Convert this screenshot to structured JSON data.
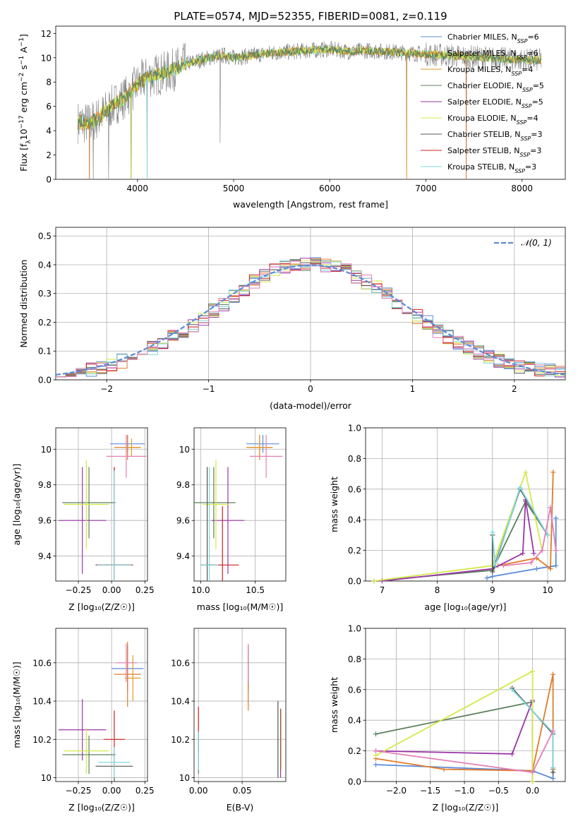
{
  "colors": {
    "chabrier_miles": "#5b8bd8",
    "salpeter_miles": "#e07b2a",
    "kroupa_miles": "#e09a2a",
    "chabrier_elodie": "#5d7f5d",
    "salpeter_elodie": "#9a35a8",
    "kroupa_elodie": "#d4e84a",
    "chabrier_stelib": "#555555",
    "salpeter_stelib": "#cc1f1f",
    "kroupa_stelib": "#7fd9dc",
    "pink": "#e47fb6",
    "data": "#808080",
    "normal": "#5b8bd8"
  },
  "chart_data": [
    {
      "id": "spectrum",
      "type": "line",
      "title": "PLATE=0574, MJD=52355, FIBERID=0081, z=0.119",
      "xlabel": "wavelength [Angstrom, rest frame]",
      "ylabel_parts": [
        "Flux [f",
        "λ",
        "10",
        "−17",
        " erg cm",
        "−2",
        " s",
        "−1",
        " A",
        "−1",
        "]"
      ],
      "xlim": [
        3150,
        8450
      ],
      "ylim": [
        0,
        12.6
      ],
      "xticks": [
        4000,
        5000,
        6000,
        7000,
        8000
      ],
      "yticks": [
        0,
        2,
        4,
        6,
        8,
        10,
        12
      ],
      "continuum": {
        "x": [
          3380,
          3500,
          3600,
          3700,
          3800,
          3900,
          4000,
          4100,
          4200,
          4300,
          4400,
          4500,
          4600,
          4700,
          4800,
          4900,
          5000,
          5200,
          5400,
          5600,
          5800,
          6000,
          6200,
          6400,
          6600,
          6800,
          7000,
          7200,
          7400,
          7600,
          7800,
          8000,
          8200
        ],
        "y": [
          4.7,
          4.6,
          5.1,
          5.8,
          6.4,
          6.9,
          7.8,
          8.4,
          8.6,
          8.8,
          9.1,
          9.5,
          9.7,
          9.9,
          10.1,
          10.2,
          10.0,
          10.2,
          10.4,
          10.5,
          10.6,
          10.7,
          10.5,
          10.6,
          10.5,
          10.4,
          10.3,
          10.2,
          10.1,
          10.0,
          9.9,
          9.8,
          9.8
        ]
      },
      "dips": [
        {
          "x": 3934,
          "y": 0
        },
        {
          "x": 4101,
          "y": 0
        },
        {
          "x": 4861,
          "y": 3.0
        },
        {
          "x": 3500,
          "y": 0
        },
        {
          "x": 3540,
          "y": 0
        },
        {
          "x": 3700,
          "y": 0
        },
        {
          "x": 6800,
          "y": 0
        },
        {
          "x": 7420,
          "y": 0
        }
      ],
      "legend": [
        {
          "label": "Chabrier MILES, N",
          "sub": "SSP",
          "suffix": "=6",
          "color_key": "chabrier_miles"
        },
        {
          "label": "Salpeter MILES, N",
          "sub": "SSP",
          "suffix": "=6",
          "color_key": "salpeter_miles"
        },
        {
          "label": "Kroupa MILES, N",
          "sub": "SSP",
          "suffix": "=4",
          "color_key": "kroupa_miles"
        },
        {
          "label": "Chabrier ELODIE, N",
          "sub": "SSP",
          "suffix": "=5",
          "color_key": "chabrier_elodie"
        },
        {
          "label": "Salpeter ELODIE, N",
          "sub": "SSP",
          "suffix": "=5",
          "color_key": "salpeter_elodie"
        },
        {
          "label": "Kroupa ELODIE, N",
          "sub": "SSP",
          "suffix": "=4",
          "color_key": "kroupa_elodie"
        },
        {
          "label": "Chabrier STELIB, N",
          "sub": "SSP",
          "suffix": "=3",
          "color_key": "chabrier_stelib"
        },
        {
          "label": "Salpeter STELIB, N",
          "sub": "SSP",
          "suffix": "=3",
          "color_key": "salpeter_stelib"
        },
        {
          "label": "Kroupa STELIB, N",
          "sub": "SSP",
          "suffix": "=3",
          "color_key": "kroupa_stelib"
        }
      ]
    },
    {
      "id": "residuals",
      "type": "line",
      "xlabel": "(data-model)/error",
      "ylabel": "Normed distribution",
      "xlim": [
        -2.5,
        2.5
      ],
      "ylim": [
        0,
        0.53
      ],
      "xticks": [
        -2,
        -1,
        0,
        1,
        2
      ],
      "xtick_labels": [
        "−2",
        "−1",
        "0",
        "1",
        "2"
      ],
      "yticks": [
        0.0,
        0.1,
        0.2,
        0.3,
        0.4,
        0.5
      ],
      "ytick_labels": [
        "0.0",
        "0.1",
        "0.2",
        "0.3",
        "0.4",
        "0.5"
      ],
      "grid": true,
      "legend_label": "𝒩(0, 1)",
      "bin_width": 0.1,
      "bin_start": -2.5,
      "hist_base": [
        0.02,
        0.025,
        0.03,
        0.035,
        0.045,
        0.055,
        0.065,
        0.08,
        0.09,
        0.11,
        0.125,
        0.15,
        0.165,
        0.19,
        0.21,
        0.24,
        0.26,
        0.29,
        0.31,
        0.34,
        0.36,
        0.38,
        0.39,
        0.4,
        0.405,
        0.41,
        0.4,
        0.395,
        0.38,
        0.36,
        0.34,
        0.32,
        0.3,
        0.27,
        0.25,
        0.22,
        0.2,
        0.17,
        0.15,
        0.13,
        0.11,
        0.095,
        0.08,
        0.065,
        0.055,
        0.045,
        0.04,
        0.035,
        0.03,
        0.025
      ]
    },
    {
      "id": "age_vs_Z",
      "type": "scatter",
      "xlabel_html": "Z [log₁₀(Z/Z☉)]",
      "ylabel_html": "age  [log₁₀(age/yr)]",
      "xlim": [
        -0.42,
        0.27
      ],
      "ylim": [
        9.26,
        10.12
      ],
      "xticks": [
        -0.25,
        0,
        0.25
      ],
      "xtick_labels": [
        "−0.25",
        "0.00",
        "0.25"
      ],
      "yticks": [
        9.4,
        9.6,
        9.8,
        10.0
      ],
      "points": [
        {
          "x": 0.12,
          "y": 10.03,
          "xe": 0.13,
          "ye": 0.05,
          "c": "chabrier_miles"
        },
        {
          "x": 0.12,
          "y": 10.01,
          "xe": 0.1,
          "ye": 0.07,
          "c": "salpeter_miles"
        },
        {
          "x": 0.15,
          "y": 10.01,
          "xe": 0.07,
          "ye": 0.05,
          "c": "kroupa_miles"
        },
        {
          "x": -0.17,
          "y": 9.7,
          "xe": 0.2,
          "ye": 0.2,
          "c": "chabrier_elodie"
        },
        {
          "x": -0.22,
          "y": 9.6,
          "xe": 0.18,
          "ye": 0.3,
          "c": "salpeter_elodie"
        },
        {
          "x": -0.19,
          "y": 9.69,
          "xe": 0.17,
          "ye": 0.25,
          "c": "kroupa_elodie"
        },
        {
          "x": 0.02,
          "y": 9.35,
          "xe": 0.14,
          "ye": 0.55,
          "c": "chabrier_stelib"
        },
        {
          "x": 0.02,
          "y": 9.35,
          "xe": 0.14,
          "ye": 0.55,
          "c": "salpeter_stelib"
        },
        {
          "x": 0.02,
          "y": 9.35,
          "xe": 0.13,
          "ye": 0.53,
          "c": "kroupa_stelib"
        },
        {
          "x": 0.11,
          "y": 9.96,
          "xe": 0.15,
          "ye": 0.12,
          "c": "pink"
        }
      ]
    },
    {
      "id": "age_vs_mass",
      "type": "scatter",
      "xlabel_html": "mass [log₁₀(M/M☉)]",
      "xlim": [
        9.94,
        10.78
      ],
      "ylim": [
        9.26,
        10.12
      ],
      "xticks": [
        10.0,
        10.5
      ],
      "xtick_labels": [
        "10.0",
        "10.5"
      ],
      "yticks": [
        9.4,
        9.6,
        9.8,
        10.0
      ],
      "points": [
        {
          "x": 10.57,
          "y": 10.03,
          "xe": 0.15,
          "ye": 0.05,
          "c": "chabrier_miles"
        },
        {
          "x": 10.54,
          "y": 10.01,
          "xe": 0.12,
          "ye": 0.07,
          "c": "salpeter_miles"
        },
        {
          "x": 10.54,
          "y": 10.01,
          "xe": 0.1,
          "ye": 0.05,
          "c": "kroupa_miles"
        },
        {
          "x": 10.12,
          "y": 9.7,
          "xe": 0.2,
          "ye": 0.2,
          "c": "chabrier_elodie"
        },
        {
          "x": 10.25,
          "y": 9.6,
          "xe": 0.15,
          "ye": 0.3,
          "c": "salpeter_elodie"
        },
        {
          "x": 10.14,
          "y": 9.69,
          "xe": 0.12,
          "ye": 0.25,
          "c": "kroupa_elodie"
        },
        {
          "x": 10.06,
          "y": 9.35,
          "xe": 0.06,
          "ye": 0.55,
          "c": "chabrier_stelib"
        },
        {
          "x": 10.2,
          "y": 9.35,
          "xe": 0.15,
          "ye": 0.33,
          "c": "salpeter_stelib"
        },
        {
          "x": 10.08,
          "y": 9.35,
          "xe": 0.08,
          "ye": 0.55,
          "c": "kroupa_stelib"
        },
        {
          "x": 10.6,
          "y": 9.96,
          "xe": 0.15,
          "ye": 0.12,
          "c": "pink"
        }
      ]
    },
    {
      "id": "weight_vs_age",
      "type": "line",
      "xlabel_html": "age  [log₁₀(age/yr)]",
      "ylabel": "mass weight",
      "xlim": [
        6.7,
        10.32
      ],
      "ylim": [
        0,
        1.0
      ],
      "xticks": [
        7,
        8,
        9,
        10
      ],
      "yticks": [
        0.0,
        0.2,
        0.4,
        0.6,
        0.8,
        1.0
      ],
      "ytick_labels": [
        "0.0",
        "0.2",
        "0.4",
        "0.6",
        "0.8",
        "1.0"
      ],
      "series": [
        {
          "c": "chabrier_miles",
          "x": [
            8.9,
            9.0,
            9.8,
            10.15,
            10.15
          ],
          "y": [
            0.02,
            0.03,
            0.08,
            0.1,
            0.41
          ]
        },
        {
          "c": "salpeter_miles",
          "x": [
            9.1,
            9.8,
            10.05,
            10.1,
            10.1
          ],
          "y": [
            0.1,
            0.15,
            0.08,
            0.71,
            0.71
          ]
        },
        {
          "c": "chabrier_elodie",
          "x": [
            6.85,
            9.0,
            9.6,
            10.0
          ],
          "y": [
            0.0,
            0.07,
            0.52,
            0.3
          ]
        },
        {
          "c": "salpeter_elodie",
          "x": [
            7.0,
            9.0,
            9.55,
            9.6,
            9.75
          ],
          "y": [
            0.0,
            0.08,
            0.18,
            0.53,
            0.18
          ]
        },
        {
          "c": "kroupa_elodie",
          "x": [
            6.85,
            9.0,
            9.6,
            9.9
          ],
          "y": [
            0.0,
            0.1,
            0.71,
            0.2
          ]
        },
        {
          "c": "chabrier_stelib",
          "x": [
            9.0,
            9.0,
            9.5,
            10.0
          ],
          "y": [
            0.3,
            0.06,
            0.6,
            0.3
          ]
        },
        {
          "c": "kroupa_stelib",
          "x": [
            9.0,
            9.05,
            9.5,
            10.0
          ],
          "y": [
            0.32,
            0.1,
            0.61,
            0.3
          ]
        },
        {
          "c": "pink",
          "x": [
            9.2,
            9.7,
            9.9,
            10.05,
            10.15
          ],
          "y": [
            0.1,
            0.12,
            0.2,
            0.48,
            0.2
          ]
        }
      ]
    },
    {
      "id": "mass_vs_Z",
      "type": "scatter",
      "xlabel_html": "Z [log₁₀(Z/Z☉)]",
      "ylabel_html": "mass [log₁₀(M/M☉)]",
      "xlim": [
        -0.42,
        0.27
      ],
      "ylim": [
        9.98,
        10.78
      ],
      "xticks": [
        -0.25,
        0,
        0.25
      ],
      "xtick_labels": [
        "−0.25",
        "0.00",
        "0.25"
      ],
      "yticks": [
        10.0,
        10.2,
        10.4,
        10.6
      ],
      "points": [
        {
          "x": 0.12,
          "y": 10.57,
          "xe": 0.12,
          "ye": 0.12,
          "c": "chabrier_miles"
        },
        {
          "x": 0.12,
          "y": 10.54,
          "xe": 0.1,
          "ye": 0.17,
          "c": "salpeter_miles"
        },
        {
          "x": 0.16,
          "y": 10.52,
          "xe": 0.06,
          "ye": 0.12,
          "c": "kroupa_miles"
        },
        {
          "x": -0.17,
          "y": 10.12,
          "xe": 0.2,
          "ye": 0.1,
          "c": "chabrier_elodie"
        },
        {
          "x": -0.22,
          "y": 10.25,
          "xe": 0.18,
          "ye": 0.16,
          "c": "salpeter_elodie"
        },
        {
          "x": -0.19,
          "y": 10.14,
          "xe": 0.17,
          "ye": 0.12,
          "c": "kroupa_elodie"
        },
        {
          "x": 0.02,
          "y": 10.06,
          "xe": 0.14,
          "ye": 0.08,
          "c": "chabrier_stelib"
        },
        {
          "x": 0.02,
          "y": 10.2,
          "xe": 0.08,
          "ye": 0.15,
          "c": "salpeter_stelib"
        },
        {
          "x": 0.02,
          "y": 10.08,
          "xe": 0.12,
          "ye": 0.08,
          "c": "kroupa_stelib"
        },
        {
          "x": 0.11,
          "y": 10.6,
          "xe": 0.08,
          "ye": 0.1,
          "c": "pink"
        }
      ]
    },
    {
      "id": "mass_vs_ebv",
      "type": "scatter",
      "xlabel": "E(B-V)",
      "xlim": [
        -0.005,
        0.1
      ],
      "ylim": [
        9.98,
        10.78
      ],
      "xticks": [
        0.0,
        0.05
      ],
      "xtick_labels": [
        "0.00",
        "0.05"
      ],
      "yticks": [
        10.0,
        10.2,
        10.4,
        10.6
      ],
      "points": [
        {
          "x": 0.0,
          "y": 10.12,
          "ye": 0.1,
          "c": "chabrier_elodie"
        },
        {
          "x": 0.0,
          "y": 10.25,
          "ye": 0.12,
          "c": "salpeter_stelib"
        },
        {
          "x": 0.0,
          "y": 10.14,
          "ye": 0.1,
          "c": "kroupa_stelib"
        },
        {
          "x": 0.057,
          "y": 10.57,
          "ye": 0.12,
          "c": "chabrier_miles"
        },
        {
          "x": 0.057,
          "y": 10.52,
          "ye": 0.17,
          "c": "salpeter_miles"
        },
        {
          "x": 0.057,
          "y": 10.6,
          "ye": 0.1,
          "c": "pink"
        },
        {
          "x": 0.091,
          "y": 10.2,
          "ye": 0.2,
          "c": "chabrier_stelib"
        },
        {
          "x": 0.094,
          "y": 10.18,
          "ye": 0.18,
          "c": "salpeter_elodie"
        },
        {
          "x": 0.095,
          "y": 10.2,
          "ye": 0.16,
          "c": "kroupa_elodie"
        }
      ]
    },
    {
      "id": "weight_vs_Z",
      "type": "line",
      "xlabel_html": "Z [log₁₀(Z/Z☉)]",
      "ylabel": "mass weight",
      "xlim": [
        -2.45,
        0.48
      ],
      "ylim": [
        0,
        1.0
      ],
      "xticks": [
        -2.0,
        -1.5,
        -1.0,
        -0.5,
        0.0
      ],
      "xtick_labels": [
        "−2.0",
        "−1.5",
        "−1.0",
        "−0.5",
        "0.0"
      ],
      "yticks": [
        0.0,
        0.2,
        0.4,
        0.6,
        0.8,
        1.0
      ],
      "ytick_labels": [
        "0.0",
        "0.2",
        "0.4",
        "0.6",
        "0.8",
        "1.0"
      ],
      "series": [
        {
          "c": "chabrier_miles",
          "x": [
            -2.3,
            0.0,
            0.3,
            0.3
          ],
          "y": [
            0.11,
            0.07,
            0.02,
            0.09
          ]
        },
        {
          "c": "salpeter_miles",
          "x": [
            -2.3,
            -1.3,
            0.0,
            0.3,
            0.3
          ],
          "y": [
            0.15,
            0.08,
            0.07,
            0.7,
            0.08
          ]
        },
        {
          "c": "chabrier_elodie",
          "x": [
            -2.3,
            0.0
          ],
          "y": [
            0.31,
            0.52
          ]
        },
        {
          "c": "salpeter_elodie",
          "x": [
            -2.3,
            -0.3,
            0.0,
            0.0
          ],
          "y": [
            0.2,
            0.18,
            0.53,
            0.0
          ]
        },
        {
          "c": "kroupa_elodie",
          "x": [
            -2.3,
            0.0,
            0.0
          ],
          "y": [
            0.17,
            0.72,
            0.0
          ]
        },
        {
          "c": "chabrier_stelib",
          "x": [
            -0.3,
            0.3,
            0.3
          ],
          "y": [
            0.61,
            0.31,
            0.06
          ]
        },
        {
          "c": "kroupa_stelib",
          "x": [
            -0.3,
            0.3,
            0.3
          ],
          "y": [
            0.6,
            0.32,
            0.09
          ]
        },
        {
          "c": "pink",
          "x": [
            -2.3,
            0.0,
            0.3
          ],
          "y": [
            0.2,
            0.06,
            0.33
          ]
        }
      ]
    }
  ]
}
